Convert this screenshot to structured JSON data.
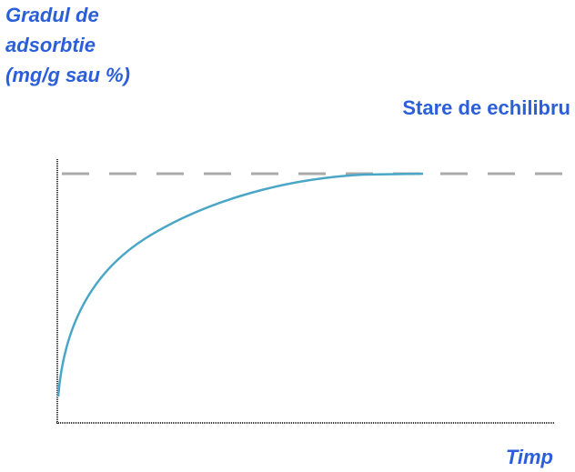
{
  "y_axis_label": [
    "Gradul de",
    "adsorbtie",
    "(mg/g sau %)"
  ],
  "equilibrium_label": "Stare de echilibru",
  "x_axis_label": "Timp"
}
